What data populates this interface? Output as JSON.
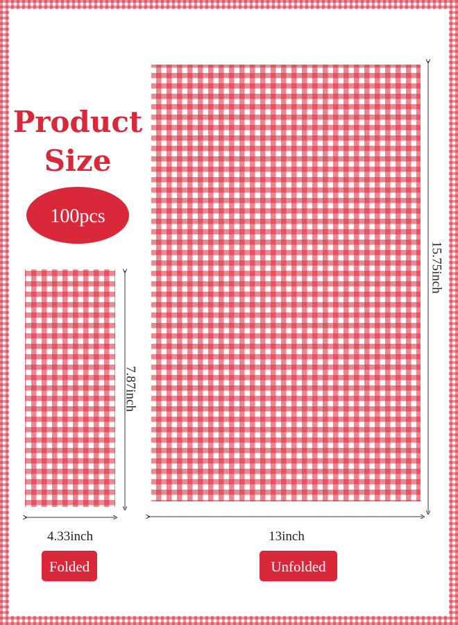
{
  "title": {
    "line1": "Product",
    "line2": "Size"
  },
  "badge": "100pcs",
  "folded": {
    "height_label": "7.87inch",
    "width_label": "4.33inch",
    "caption": "Folded"
  },
  "unfolded": {
    "height_label": "15.75inch",
    "width_label": "13inch",
    "caption": "Unfolded"
  }
}
